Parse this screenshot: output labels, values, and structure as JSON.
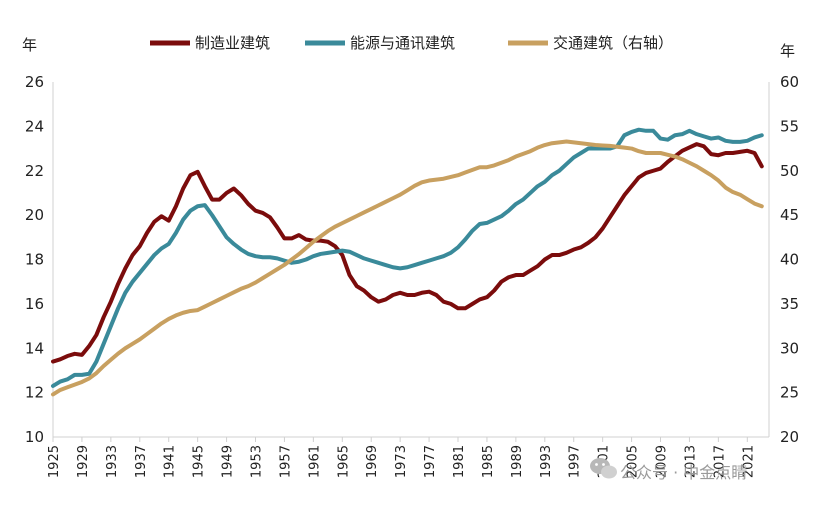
{
  "watermark": "公众号 · 中金点睛",
  "chart_data": {
    "type": "line",
    "left_unit": "年",
    "right_unit": "年",
    "y_left": {
      "min": 10,
      "max": 26,
      "step": 2
    },
    "y_right": {
      "min": 20,
      "max": 60,
      "step": 5
    },
    "x_range": [
      1925,
      2024
    ],
    "x_tick_labels": [
      "1925",
      "1929",
      "1933",
      "1937",
      "1941",
      "1945",
      "1949",
      "1953",
      "1957",
      "1961",
      "1965",
      "1969",
      "1973",
      "1977",
      "1981",
      "1985",
      "1989",
      "1993",
      "1997",
      "2001",
      "2005",
      "2009",
      "2013",
      "2017",
      "2021"
    ],
    "legend_position": "top-center",
    "grid": false,
    "series": [
      {
        "name": "制造业建筑",
        "axis": "left",
        "color": "#7b0c0c",
        "points": [
          [
            1925,
            13.4
          ],
          [
            1926,
            13.5
          ],
          [
            1927,
            13.65
          ],
          [
            1928,
            13.75
          ],
          [
            1929,
            13.7
          ],
          [
            1930,
            14.1
          ],
          [
            1931,
            14.6
          ],
          [
            1932,
            15.4
          ],
          [
            1933,
            16.1
          ],
          [
            1934,
            16.9
          ],
          [
            1935,
            17.6
          ],
          [
            1936,
            18.2
          ],
          [
            1937,
            18.6
          ],
          [
            1938,
            19.2
          ],
          [
            1939,
            19.7
          ],
          [
            1940,
            19.95
          ],
          [
            1941,
            19.75
          ],
          [
            1942,
            20.4
          ],
          [
            1943,
            21.2
          ],
          [
            1944,
            21.8
          ],
          [
            1945,
            21.95
          ],
          [
            1946,
            21.3
          ],
          [
            1947,
            20.7
          ],
          [
            1948,
            20.7
          ],
          [
            1949,
            21.0
          ],
          [
            1950,
            21.2
          ],
          [
            1951,
            20.9
          ],
          [
            1952,
            20.5
          ],
          [
            1953,
            20.2
          ],
          [
            1954,
            20.1
          ],
          [
            1955,
            19.9
          ],
          [
            1956,
            19.45
          ],
          [
            1957,
            18.95
          ],
          [
            1958,
            18.95
          ],
          [
            1959,
            19.1
          ],
          [
            1960,
            18.9
          ],
          [
            1961,
            18.85
          ],
          [
            1962,
            18.85
          ],
          [
            1963,
            18.8
          ],
          [
            1964,
            18.6
          ],
          [
            1965,
            18.2
          ],
          [
            1966,
            17.3
          ],
          [
            1967,
            16.8
          ],
          [
            1968,
            16.6
          ],
          [
            1969,
            16.3
          ],
          [
            1970,
            16.1
          ],
          [
            1971,
            16.2
          ],
          [
            1972,
            16.4
          ],
          [
            1973,
            16.5
          ],
          [
            1974,
            16.4
          ],
          [
            1975,
            16.4
          ],
          [
            1976,
            16.5
          ],
          [
            1977,
            16.55
          ],
          [
            1978,
            16.4
          ],
          [
            1979,
            16.1
          ],
          [
            1980,
            16.0
          ],
          [
            1981,
            15.8
          ],
          [
            1982,
            15.8
          ],
          [
            1983,
            16.0
          ],
          [
            1984,
            16.2
          ],
          [
            1985,
            16.3
          ],
          [
            1986,
            16.6
          ],
          [
            1987,
            17.0
          ],
          [
            1988,
            17.2
          ],
          [
            1989,
            17.3
          ],
          [
            1990,
            17.3
          ],
          [
            1991,
            17.5
          ],
          [
            1992,
            17.7
          ],
          [
            1993,
            18.0
          ],
          [
            1994,
            18.2
          ],
          [
            1995,
            18.2
          ],
          [
            1996,
            18.3
          ],
          [
            1997,
            18.45
          ],
          [
            1998,
            18.55
          ],
          [
            1999,
            18.75
          ],
          [
            2000,
            19.0
          ],
          [
            2001,
            19.4
          ],
          [
            2002,
            19.9
          ],
          [
            2003,
            20.4
          ],
          [
            2004,
            20.9
          ],
          [
            2005,
            21.3
          ],
          [
            2006,
            21.7
          ],
          [
            2007,
            21.9
          ],
          [
            2008,
            22.0
          ],
          [
            2009,
            22.1
          ],
          [
            2010,
            22.4
          ],
          [
            2011,
            22.65
          ],
          [
            2012,
            22.9
          ],
          [
            2013,
            23.05
          ],
          [
            2014,
            23.2
          ],
          [
            2015,
            23.1
          ],
          [
            2016,
            22.75
          ],
          [
            2017,
            22.7
          ],
          [
            2018,
            22.8
          ],
          [
            2019,
            22.8
          ],
          [
            2020,
            22.85
          ],
          [
            2021,
            22.9
          ],
          [
            2022,
            22.8
          ],
          [
            2023,
            22.2
          ]
        ]
      },
      {
        "name": "能源与通讯建筑",
        "axis": "left",
        "color": "#3a8a9a",
        "points": [
          [
            1925,
            12.3
          ],
          [
            1926,
            12.5
          ],
          [
            1927,
            12.6
          ],
          [
            1928,
            12.8
          ],
          [
            1929,
            12.8
          ],
          [
            1930,
            12.85
          ],
          [
            1931,
            13.4
          ],
          [
            1932,
            14.2
          ],
          [
            1933,
            15.0
          ],
          [
            1934,
            15.8
          ],
          [
            1935,
            16.5
          ],
          [
            1936,
            17.0
          ],
          [
            1937,
            17.4
          ],
          [
            1938,
            17.8
          ],
          [
            1939,
            18.2
          ],
          [
            1940,
            18.5
          ],
          [
            1941,
            18.7
          ],
          [
            1942,
            19.2
          ],
          [
            1943,
            19.8
          ],
          [
            1944,
            20.2
          ],
          [
            1945,
            20.4
          ],
          [
            1946,
            20.45
          ],
          [
            1947,
            20.0
          ],
          [
            1948,
            19.5
          ],
          [
            1949,
            19.0
          ],
          [
            1950,
            18.7
          ],
          [
            1951,
            18.45
          ],
          [
            1952,
            18.25
          ],
          [
            1953,
            18.15
          ],
          [
            1954,
            18.1
          ],
          [
            1955,
            18.1
          ],
          [
            1956,
            18.05
          ],
          [
            1957,
            17.95
          ],
          [
            1958,
            17.85
          ],
          [
            1959,
            17.9
          ],
          [
            1960,
            18.0
          ],
          [
            1961,
            18.15
          ],
          [
            1962,
            18.25
          ],
          [
            1963,
            18.3
          ],
          [
            1964,
            18.35
          ],
          [
            1965,
            18.4
          ],
          [
            1966,
            18.35
          ],
          [
            1967,
            18.2
          ],
          [
            1968,
            18.05
          ],
          [
            1969,
            17.95
          ],
          [
            1970,
            17.85
          ],
          [
            1971,
            17.75
          ],
          [
            1972,
            17.65
          ],
          [
            1973,
            17.6
          ],
          [
            1974,
            17.65
          ],
          [
            1975,
            17.75
          ],
          [
            1976,
            17.85
          ],
          [
            1977,
            17.95
          ],
          [
            1978,
            18.05
          ],
          [
            1979,
            18.15
          ],
          [
            1980,
            18.3
          ],
          [
            1981,
            18.55
          ],
          [
            1982,
            18.9
          ],
          [
            1983,
            19.3
          ],
          [
            1984,
            19.6
          ],
          [
            1985,
            19.65
          ],
          [
            1986,
            19.8
          ],
          [
            1987,
            19.95
          ],
          [
            1988,
            20.2
          ],
          [
            1989,
            20.5
          ],
          [
            1990,
            20.7
          ],
          [
            1991,
            21.0
          ],
          [
            1992,
            21.3
          ],
          [
            1993,
            21.5
          ],
          [
            1994,
            21.8
          ],
          [
            1995,
            22.0
          ],
          [
            1996,
            22.3
          ],
          [
            1997,
            22.6
          ],
          [
            1998,
            22.8
          ],
          [
            1999,
            23.0
          ],
          [
            2000,
            23.0
          ],
          [
            2001,
            23.0
          ],
          [
            2002,
            23.0
          ],
          [
            2003,
            23.1
          ],
          [
            2004,
            23.6
          ],
          [
            2005,
            23.75
          ],
          [
            2006,
            23.85
          ],
          [
            2007,
            23.8
          ],
          [
            2008,
            23.8
          ],
          [
            2009,
            23.45
          ],
          [
            2010,
            23.4
          ],
          [
            2011,
            23.6
          ],
          [
            2012,
            23.65
          ],
          [
            2013,
            23.8
          ],
          [
            2014,
            23.65
          ],
          [
            2015,
            23.55
          ],
          [
            2016,
            23.45
          ],
          [
            2017,
            23.5
          ],
          [
            2018,
            23.35
          ],
          [
            2019,
            23.3
          ],
          [
            2020,
            23.3
          ],
          [
            2021,
            23.35
          ],
          [
            2022,
            23.5
          ],
          [
            2023,
            23.6
          ]
        ]
      },
      {
        "name": "交通建筑（右轴）",
        "axis": "right",
        "color": "#c8a060",
        "points": [
          [
            1925,
            24.8
          ],
          [
            1926,
            25.3
          ],
          [
            1927,
            25.6
          ],
          [
            1928,
            25.9
          ],
          [
            1929,
            26.2
          ],
          [
            1930,
            26.6
          ],
          [
            1931,
            27.2
          ],
          [
            1932,
            28.0
          ],
          [
            1933,
            28.7
          ],
          [
            1934,
            29.4
          ],
          [
            1935,
            30.0
          ],
          [
            1936,
            30.5
          ],
          [
            1937,
            31.0
          ],
          [
            1938,
            31.6
          ],
          [
            1939,
            32.2
          ],
          [
            1940,
            32.8
          ],
          [
            1941,
            33.3
          ],
          [
            1942,
            33.7
          ],
          [
            1943,
            34.0
          ],
          [
            1944,
            34.2
          ],
          [
            1945,
            34.3
          ],
          [
            1946,
            34.7
          ],
          [
            1947,
            35.1
          ],
          [
            1948,
            35.5
          ],
          [
            1949,
            35.9
          ],
          [
            1950,
            36.3
          ],
          [
            1951,
            36.7
          ],
          [
            1952,
            37.0
          ],
          [
            1953,
            37.4
          ],
          [
            1954,
            37.9
          ],
          [
            1955,
            38.4
          ],
          [
            1956,
            38.9
          ],
          [
            1957,
            39.4
          ],
          [
            1958,
            40.0
          ],
          [
            1959,
            40.6
          ],
          [
            1960,
            41.3
          ],
          [
            1961,
            42.0
          ],
          [
            1962,
            42.6
          ],
          [
            1963,
            43.2
          ],
          [
            1964,
            43.7
          ],
          [
            1965,
            44.1
          ],
          [
            1966,
            44.5
          ],
          [
            1967,
            44.9
          ],
          [
            1968,
            45.3
          ],
          [
            1969,
            45.7
          ],
          [
            1970,
            46.1
          ],
          [
            1971,
            46.5
          ],
          [
            1972,
            46.9
          ],
          [
            1973,
            47.3
          ],
          [
            1974,
            47.8
          ],
          [
            1975,
            48.3
          ],
          [
            1976,
            48.7
          ],
          [
            1977,
            48.9
          ],
          [
            1978,
            49.0
          ],
          [
            1979,
            49.1
          ],
          [
            1980,
            49.3
          ],
          [
            1981,
            49.5
          ],
          [
            1982,
            49.8
          ],
          [
            1983,
            50.1
          ],
          [
            1984,
            50.4
          ],
          [
            1985,
            50.4
          ],
          [
            1986,
            50.6
          ],
          [
            1987,
            50.9
          ],
          [
            1988,
            51.2
          ],
          [
            1989,
            51.6
          ],
          [
            1990,
            51.9
          ],
          [
            1991,
            52.2
          ],
          [
            1992,
            52.6
          ],
          [
            1993,
            52.9
          ],
          [
            1994,
            53.1
          ],
          [
            1995,
            53.2
          ],
          [
            1996,
            53.3
          ],
          [
            1997,
            53.2
          ],
          [
            1998,
            53.1
          ],
          [
            1999,
            53.0
          ],
          [
            2000,
            52.9
          ],
          [
            2001,
            52.85
          ],
          [
            2002,
            52.8
          ],
          [
            2003,
            52.7
          ],
          [
            2004,
            52.6
          ],
          [
            2005,
            52.5
          ],
          [
            2006,
            52.2
          ],
          [
            2007,
            52.0
          ],
          [
            2008,
            52.0
          ],
          [
            2009,
            52.0
          ],
          [
            2010,
            51.8
          ],
          [
            2011,
            51.6
          ],
          [
            2012,
            51.3
          ],
          [
            2013,
            50.9
          ],
          [
            2014,
            50.5
          ],
          [
            2015,
            50.0
          ],
          [
            2016,
            49.5
          ],
          [
            2017,
            48.9
          ],
          [
            2018,
            48.1
          ],
          [
            2019,
            47.6
          ],
          [
            2020,
            47.3
          ],
          [
            2021,
            46.8
          ],
          [
            2022,
            46.3
          ],
          [
            2023,
            46.0
          ]
        ]
      }
    ]
  }
}
